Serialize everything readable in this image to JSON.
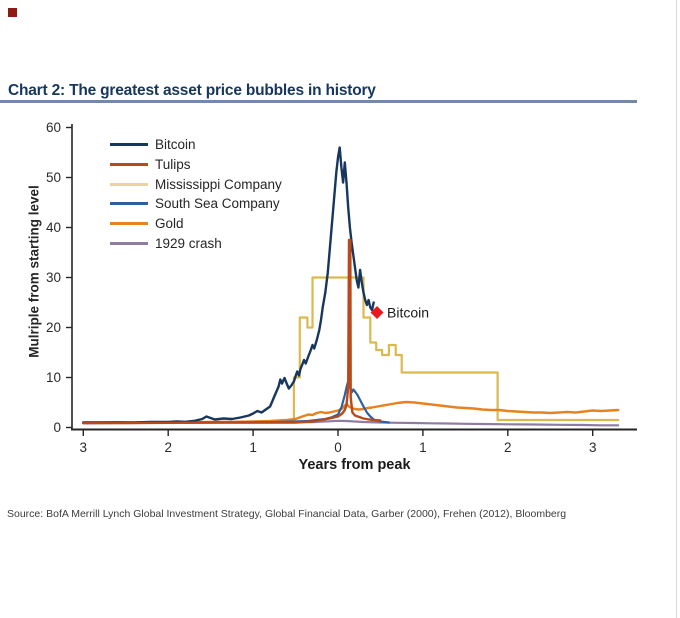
{
  "header": {
    "title": "Chart 2: The greatest asset price bubbles in history",
    "title_color": "#17365d",
    "rule_color": "#7389ab",
    "corner_square_color": "#8e1b12"
  },
  "source_line": "Source:  BofA Merrill Lynch Global Investment Strategy, Global Financial Data, Garber (2000), Frehen (2012),  Bloomberg",
  "chart_data": {
    "type": "line",
    "title": "Chart 2: The greatest asset price bubbles in history",
    "xlabel": "Years from peak",
    "ylabel": "Mulriple from starting level",
    "xlim": [
      -3.05,
      3.35
    ],
    "ylim": [
      0,
      60
    ],
    "grid": false,
    "legend_position": "top-left",
    "x_tick_values": [
      -3,
      -2,
      -1,
      0,
      1,
      2,
      3
    ],
    "x_tick_labels": [
      "3",
      "2",
      "1",
      "0",
      "1",
      "2",
      "3"
    ],
    "y_tick_values": [
      0,
      10,
      20,
      30,
      40,
      50,
      60
    ],
    "y_tick_labels": [
      "0",
      "10",
      "20",
      "30",
      "40",
      "50",
      "60"
    ],
    "annotation": {
      "label": "Bitcoin",
      "x": 0.46,
      "y": 23,
      "marker": "diamond",
      "color": "#e8191f"
    },
    "series": [
      {
        "name": "Bitcoin",
        "color": "#17375e",
        "line_width": 2.4,
        "points": [
          [
            -3,
            1
          ],
          [
            -2.8,
            1
          ],
          [
            -2.6,
            1.05
          ],
          [
            -2.4,
            1
          ],
          [
            -2.2,
            1.1
          ],
          [
            -2,
            1.1
          ],
          [
            -1.9,
            1.2
          ],
          [
            -1.8,
            1.15
          ],
          [
            -1.7,
            1.3
          ],
          [
            -1.6,
            1.7
          ],
          [
            -1.55,
            2.2
          ],
          [
            -1.5,
            1.9
          ],
          [
            -1.45,
            1.6
          ],
          [
            -1.35,
            1.8
          ],
          [
            -1.25,
            1.7
          ],
          [
            -1.15,
            2.0
          ],
          [
            -1.05,
            2.4
          ],
          [
            -1.0,
            2.8
          ],
          [
            -0.95,
            3.3
          ],
          [
            -0.9,
            3.0
          ],
          [
            -0.85,
            3.6
          ],
          [
            -0.8,
            4.2
          ],
          [
            -0.78,
            5.0
          ],
          [
            -0.75,
            6.2
          ],
          [
            -0.72,
            7.4
          ],
          [
            -0.7,
            8.2
          ],
          [
            -0.68,
            9.6
          ],
          [
            -0.66,
            8.8
          ],
          [
            -0.63,
            9.9
          ],
          [
            -0.6,
            8.6
          ],
          [
            -0.58,
            7.8
          ],
          [
            -0.55,
            8.4
          ],
          [
            -0.52,
            9.2
          ],
          [
            -0.5,
            10.3
          ],
          [
            -0.48,
            11.2
          ],
          [
            -0.46,
            10.4
          ],
          [
            -0.44,
            11.8
          ],
          [
            -0.42,
            12.6
          ],
          [
            -0.4,
            13.5
          ],
          [
            -0.38,
            12.8
          ],
          [
            -0.35,
            14.2
          ],
          [
            -0.32,
            15.5
          ],
          [
            -0.3,
            16.5
          ],
          [
            -0.28,
            15.8
          ],
          [
            -0.25,
            17.5
          ],
          [
            -0.22,
            19.5
          ],
          [
            -0.2,
            21.5
          ],
          [
            -0.18,
            24
          ],
          [
            -0.15,
            27
          ],
          [
            -0.12,
            31
          ],
          [
            -0.1,
            35
          ],
          [
            -0.08,
            39
          ],
          [
            -0.06,
            43
          ],
          [
            -0.04,
            47
          ],
          [
            -0.02,
            51
          ],
          [
            0,
            54
          ],
          [
            0.02,
            56
          ],
          [
            0.04,
            52
          ],
          [
            0.06,
            49
          ],
          [
            0.08,
            53
          ],
          [
            0.1,
            49
          ],
          [
            0.12,
            44
          ],
          [
            0.14,
            40
          ],
          [
            0.16,
            37
          ],
          [
            0.18,
            34.5
          ],
          [
            0.2,
            32
          ],
          [
            0.22,
            29.5
          ],
          [
            0.24,
            28
          ],
          [
            0.26,
            31.5
          ],
          [
            0.28,
            29
          ],
          [
            0.3,
            27
          ],
          [
            0.32,
            25.5
          ],
          [
            0.34,
            24.5
          ],
          [
            0.36,
            25.5
          ],
          [
            0.38,
            24
          ],
          [
            0.4,
            23.5
          ],
          [
            0.42,
            25
          ]
        ]
      },
      {
        "name": "Tulips",
        "color": "#b9491a",
        "line_width": 2.4,
        "points": [
          [
            -3,
            0.9
          ],
          [
            -2.5,
            0.9
          ],
          [
            -2,
            0.95
          ],
          [
            -1.5,
            1
          ],
          [
            -1,
            1
          ],
          [
            -0.7,
            1
          ],
          [
            -0.5,
            1
          ],
          [
            -0.3,
            1.2
          ],
          [
            -0.2,
            1.5
          ],
          [
            -0.1,
            1.8
          ],
          [
            0,
            2.2
          ],
          [
            0.05,
            2.8
          ],
          [
            0.08,
            3.5
          ],
          [
            0.1,
            4.5
          ],
          [
            0.12,
            8
          ],
          [
            0.13,
            37.5
          ],
          [
            0.145,
            37.5
          ],
          [
            0.15,
            6
          ],
          [
            0.17,
            3
          ],
          [
            0.2,
            2.4
          ],
          [
            0.3,
            1.8
          ],
          [
            0.4,
            1.5
          ],
          [
            0.5,
            1.4
          ]
        ]
      },
      {
        "name": "Mississippi Company",
        "color": "#dcb94f",
        "legend_color": "#e8d49c",
        "line_width": 2.2,
        "points": [
          [
            -3,
            1
          ],
          [
            -2,
            1
          ],
          [
            -1,
            1
          ],
          [
            -0.52,
            1
          ],
          [
            -0.52,
            10
          ],
          [
            -0.45,
            10
          ],
          [
            -0.45,
            22
          ],
          [
            -0.36,
            22
          ],
          [
            -0.36,
            20
          ],
          [
            -0.3,
            20
          ],
          [
            -0.3,
            30
          ],
          [
            0.3,
            30
          ],
          [
            0.3,
            22
          ],
          [
            0.38,
            22
          ],
          [
            0.38,
            17
          ],
          [
            0.45,
            17
          ],
          [
            0.45,
            15.5
          ],
          [
            0.52,
            15.5
          ],
          [
            0.52,
            14.5
          ],
          [
            0.6,
            14.5
          ],
          [
            0.6,
            16.5
          ],
          [
            0.68,
            16.5
          ],
          [
            0.68,
            14.5
          ],
          [
            0.75,
            14.5
          ],
          [
            0.75,
            11
          ],
          [
            1.88,
            11
          ],
          [
            1.88,
            1.5
          ],
          [
            3.3,
            1.5
          ]
        ]
      },
      {
        "name": "South Sea Company",
        "color": "#2e5fa3",
        "line_width": 2.2,
        "points": [
          [
            -3,
            0.9
          ],
          [
            -2.5,
            0.95
          ],
          [
            -2,
            1
          ],
          [
            -1.5,
            1
          ],
          [
            -1,
            1.05
          ],
          [
            -0.7,
            1.1
          ],
          [
            -0.5,
            1.2
          ],
          [
            -0.35,
            1.3
          ],
          [
            -0.25,
            1.5
          ],
          [
            -0.15,
            1.7
          ],
          [
            -0.08,
            2.0
          ],
          [
            0,
            2.6
          ],
          [
            0.04,
            4
          ],
          [
            0.08,
            6.5
          ],
          [
            0.1,
            8
          ],
          [
            0.12,
            9.3
          ],
          [
            0.14,
            8.2
          ],
          [
            0.16,
            7.0
          ],
          [
            0.18,
            7.6
          ],
          [
            0.2,
            7.2
          ],
          [
            0.23,
            6.5
          ],
          [
            0.26,
            5.5
          ],
          [
            0.3,
            4.2
          ],
          [
            0.34,
            3
          ],
          [
            0.38,
            2.2
          ],
          [
            0.42,
            1.6
          ],
          [
            0.5,
            1.2
          ],
          [
            0.6,
            1.0
          ]
        ]
      },
      {
        "name": "Gold",
        "color": "#e8821e",
        "line_width": 2.4,
        "points": [
          [
            -3,
            1
          ],
          [
            -2.5,
            1
          ],
          [
            -2,
            1.05
          ],
          [
            -1.5,
            1.1
          ],
          [
            -1.2,
            1.15
          ],
          [
            -1,
            1.2
          ],
          [
            -0.8,
            1.3
          ],
          [
            -0.6,
            1.5
          ],
          [
            -0.5,
            1.7
          ],
          [
            -0.42,
            2.2
          ],
          [
            -0.35,
            2.6
          ],
          [
            -0.3,
            2.5
          ],
          [
            -0.25,
            2.9
          ],
          [
            -0.2,
            3.1
          ],
          [
            -0.15,
            2.9
          ],
          [
            -0.1,
            3.0
          ],
          [
            -0.05,
            3.2
          ],
          [
            0,
            3.4
          ],
          [
            0.05,
            3.8
          ],
          [
            0.08,
            4.4
          ],
          [
            0.1,
            4.7
          ],
          [
            0.13,
            4.2
          ],
          [
            0.16,
            3.9
          ],
          [
            0.2,
            3.7
          ],
          [
            0.25,
            3.6
          ],
          [
            0.3,
            3.7
          ],
          [
            0.35,
            3.9
          ],
          [
            0.4,
            4.0
          ],
          [
            0.5,
            4.3
          ],
          [
            0.6,
            4.6
          ],
          [
            0.7,
            4.9
          ],
          [
            0.8,
            5.1
          ],
          [
            0.9,
            5.0
          ],
          [
            1.0,
            4.8
          ],
          [
            1.1,
            4.6
          ],
          [
            1.2,
            4.4
          ],
          [
            1.3,
            4.2
          ],
          [
            1.4,
            4.0
          ],
          [
            1.5,
            3.9
          ],
          [
            1.6,
            3.8
          ],
          [
            1.7,
            3.6
          ],
          [
            1.8,
            3.5
          ],
          [
            1.9,
            3.5
          ],
          [
            2.0,
            3.3
          ],
          [
            2.1,
            3.2
          ],
          [
            2.2,
            3.1
          ],
          [
            2.3,
            3.0
          ],
          [
            2.4,
            3.0
          ],
          [
            2.5,
            2.9
          ],
          [
            2.6,
            3.0
          ],
          [
            2.7,
            3.1
          ],
          [
            2.8,
            3.0
          ],
          [
            2.9,
            3.2
          ],
          [
            3.0,
            3.4
          ],
          [
            3.1,
            3.3
          ],
          [
            3.2,
            3.4
          ],
          [
            3.3,
            3.5
          ]
        ]
      },
      {
        "name": "1929 crash",
        "color": "#8e7da1",
        "line_width": 2.2,
        "points": [
          [
            -3,
            0.85
          ],
          [
            -2.5,
            0.9
          ],
          [
            -2,
            0.95
          ],
          [
            -1.5,
            1.0
          ],
          [
            -1,
            1.0
          ],
          [
            -0.5,
            1.05
          ],
          [
            -0.3,
            1.1
          ],
          [
            -0.1,
            1.25
          ],
          [
            0,
            1.35
          ],
          [
            0.1,
            1.3
          ],
          [
            0.2,
            1.2
          ],
          [
            0.3,
            1.1
          ],
          [
            0.5,
            1.0
          ],
          [
            0.7,
            0.95
          ],
          [
            0.9,
            0.9
          ],
          [
            1.1,
            0.85
          ],
          [
            1.3,
            0.8
          ],
          [
            1.5,
            0.75
          ],
          [
            1.7,
            0.7
          ],
          [
            2.0,
            0.65
          ],
          [
            2.3,
            0.6
          ],
          [
            2.6,
            0.55
          ],
          [
            2.9,
            0.5
          ],
          [
            3.1,
            0.45
          ],
          [
            3.3,
            0.45
          ]
        ]
      }
    ]
  }
}
